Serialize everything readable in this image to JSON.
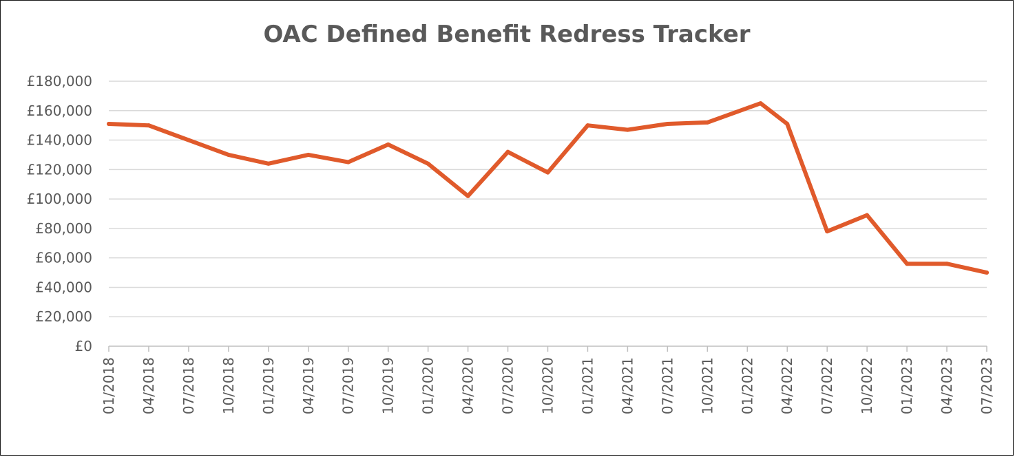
{
  "chart_data": {
    "type": "line",
    "title": "OAC Defined Benefit Redress Tracker",
    "xlabel": "",
    "ylabel": "",
    "ylim": [
      0,
      180000
    ],
    "y_ticks": [
      0,
      20000,
      40000,
      60000,
      80000,
      100000,
      120000,
      140000,
      160000,
      180000
    ],
    "y_tick_labels": [
      "£0",
      "£20,000",
      "£40,000",
      "£60,000",
      "£80,000",
      "£100,000",
      "£120,000",
      "£140,000",
      "£160,000",
      "£180,000"
    ],
    "grid": true,
    "legend": "none",
    "series_color": "#e05a2b",
    "x_tick_labels": [
      "01/2018",
      "04/2018",
      "07/2018",
      "10/2018",
      "01/2019",
      "04/2019",
      "07/2019",
      "10/2019",
      "01/2020",
      "04/2020",
      "07/2020",
      "10/2020",
      "01/2021",
      "04/2021",
      "07/2021",
      "10/2021",
      "01/2022",
      "04/2022",
      "07/2022",
      "10/2022",
      "01/2023",
      "04/2023",
      "07/2023"
    ],
    "series": [
      {
        "points": [
          {
            "x": "2018-01",
            "y": 151000
          },
          {
            "x": "2018-04",
            "y": 150000
          },
          {
            "x": "2018-07",
            "y": 140000
          },
          {
            "x": "2018-10",
            "y": 130000
          },
          {
            "x": "2019-01",
            "y": 124000
          },
          {
            "x": "2019-04",
            "y": 130000
          },
          {
            "x": "2019-07",
            "y": 125000
          },
          {
            "x": "2019-10",
            "y": 137000
          },
          {
            "x": "2020-01",
            "y": 124000
          },
          {
            "x": "2020-04",
            "y": 102000
          },
          {
            "x": "2020-07",
            "y": 132000
          },
          {
            "x": "2020-10",
            "y": 118000
          },
          {
            "x": "2021-01",
            "y": 150000
          },
          {
            "x": "2021-04",
            "y": 147000
          },
          {
            "x": "2021-07",
            "y": 151000
          },
          {
            "x": "2021-10",
            "y": 152000
          },
          {
            "x": "2022-02",
            "y": 165000
          },
          {
            "x": "2022-04",
            "y": 151000
          },
          {
            "x": "2022-07",
            "y": 78000
          },
          {
            "x": "2022-10",
            "y": 89000
          },
          {
            "x": "2023-01",
            "y": 56000
          },
          {
            "x": "2023-04",
            "y": 56000
          },
          {
            "x": "2023-07",
            "y": 50000
          }
        ]
      }
    ]
  }
}
